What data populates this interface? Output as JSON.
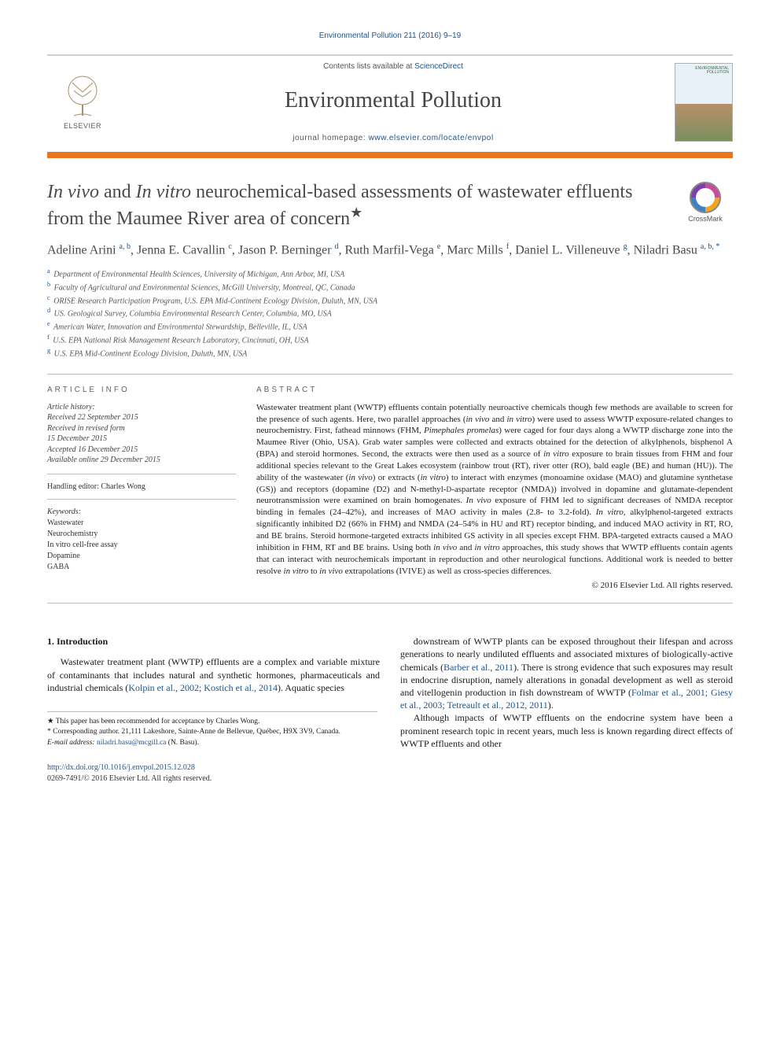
{
  "running_head": "Environmental Pollution 211 (2016) 9–19",
  "masthead": {
    "contents_prefix": "Contents lists available at ",
    "contents_link": "ScienceDirect",
    "journal_name": "Environmental Pollution",
    "homepage_prefix": "journal homepage: ",
    "homepage_url": "www.elsevier.com/locate/envpol",
    "publisher": "ELSEVIER",
    "cover_title": "ENVIRONMENTAL POLLUTION"
  },
  "colors": {
    "link": "#1a5490",
    "accent_bar": "#e9751f",
    "rule": "#bfbfbf",
    "text": "#1a1a1a",
    "muted": "#555555"
  },
  "article": {
    "title_html": "<em>In vivo</em> and <em>In vitro</em> neurochemical-based assessments of wastewater effluents from the Maumee River area of concern",
    "title_star": "★",
    "crossmark_label": "CrossMark",
    "authors_html": "Adeline Arini <sup>a, b</sup>, Jenna E. Cavallin <sup>c</sup>, Jason P. Berninger <sup>d</sup>, Ruth Marfil-Vega <sup>e</sup>, Marc Mills <sup>f</sup>, Daniel L. Villeneuve <sup>g</sup>, Niladri Basu <sup>a, b, *</sup>",
    "affiliations": [
      {
        "key": "a",
        "text": "Department of Environmental Health Sciences, University of Michigan, Ann Arbor, MI, USA"
      },
      {
        "key": "b",
        "text": "Faculty of Agricultural and Environmental Sciences, McGill University, Montreal, QC, Canada"
      },
      {
        "key": "c",
        "text": "ORISE Research Participation Program, U.S. EPA Mid-Continent Ecology Division, Duluth, MN, USA"
      },
      {
        "key": "d",
        "text": "US. Geological Survey, Columbia Environmental Research Center, Columbia, MO, USA"
      },
      {
        "key": "e",
        "text": "American Water, Innovation and Environmental Stewardship, Belleville, IL, USA"
      },
      {
        "key": "f",
        "text": "U.S. EPA National Risk Management Research Laboratory, Cincinnati, OH, USA"
      },
      {
        "key": "g",
        "text": "U.S. EPA Mid-Continent Ecology Division, Duluth, MN, USA"
      }
    ]
  },
  "article_info": {
    "heading": "ARTICLE INFO",
    "history_label": "Article history:",
    "history": [
      "Received 22 September 2015",
      "Received in revised form",
      "15 December 2015",
      "Accepted 16 December 2015",
      "Available online 29 December 2015"
    ],
    "handling_editor": "Handling editor: Charles Wong",
    "keywords_label": "Keywords:",
    "keywords": [
      "Wastewater",
      "Neurochemistry",
      "In vitro cell-free assay",
      "Dopamine",
      "GABA"
    ]
  },
  "abstract": {
    "heading": "ABSTRACT",
    "text_html": "Wastewater treatment plant (WWTP) effluents contain potentially neuroactive chemicals though few methods are available to screen for the presence of such agents. Here, two parallel approaches (<em>in vivo</em> and <em>in vitro</em>) were used to assess WWTP exposure-related changes to neurochemistry. First, fathead minnows (FHM, <em>Pimephales promelas</em>) were caged for four days along a WWTP discharge zone into the Maumee River (Ohio, USA). Grab water samples were collected and extracts obtained for the detection of alkylphenols, bisphenol A (BPA) and steroid hormones. Second, the extracts were then used as a source of <em>in vitro</em> exposure to brain tissues from FHM and four additional species relevant to the Great Lakes ecosystem (rainbow trout (RT), river otter (RO), bald eagle (BE) and human (HU)). The ability of the wastewater (<em>in vivo</em>) or extracts (<em>in vitro</em>) to interact with enzymes (monoamine oxidase (MAO) and glutamine synthetase (GS)) and receptors (dopamine (D2) and N-methyl-<small>D</small>-aspartate receptor (NMDA)) involved in dopamine and glutamate-dependent neurotransmission were examined on brain homogenates. <em>In vivo</em> exposure of FHM led to significant decreases of NMDA receptor binding in females (24–42%), and increases of MAO activity in males (2.8- to 3.2-fold). <em>In vitro</em>, alkylphenol-targeted extracts significantly inhibited D2 (66% in FHM) and NMDA (24–54% in HU and RT) receptor binding, and induced MAO activity in RT, RO, and BE brains. Steroid hormone-targeted extracts inhibited GS activity in all species except FHM. BPA-targeted extracts caused a MAO inhibition in FHM, RT and BE brains. Using both <em>in vivo</em> and <em>in vitro</em> approaches, this study shows that WWTP effluents contain agents that can interact with neurochemicals important in reproduction and other neurological functions. Additional work is needed to better resolve <em>in vitro</em> to <em>in vivo</em> extrapolations (IVIVE) as well as cross-species differences.",
    "copyright": "© 2016 Elsevier Ltd. All rights reserved."
  },
  "body": {
    "intro_heading": "1. Introduction",
    "col1_p1_html": "Wastewater treatment plant (WWTP) effluents are a complex and variable mixture of contaminants that includes natural and synthetic hormones, pharmaceuticals and industrial chemicals (<span class=\"ref\">Kolpin et al., 2002; Kostich et al., 2014</span>). Aquatic species",
    "col2_p1_html": "downstream of WWTP plants can be exposed throughout their lifespan and across generations to nearly undiluted effluents and associated mixtures of biologically-active chemicals (<span class=\"ref\">Barber et al., 2011</span>). There is strong evidence that such exposures may result in endocrine disruption, namely alterations in gonadal development as well as steroid and vitellogenin production in fish downstream of WWTP (<span class=\"ref\">Folmar et al., 2001; Giesy et al., 2003; Tetreault et al., 2012, 2011</span>).",
    "col2_p2_html": "Although impacts of WWTP effluents on the endocrine system have been a prominent research topic in recent years, much less is known regarding direct effects of WWTP effluents and other"
  },
  "footnotes": {
    "star": "★  This paper has been recommended for acceptance by Charles Wong.",
    "corr": "*  Corresponding author. 21,111 Lakeshore, Sainte-Anne de Bellevue, Québec, H9X 3V9, Canada.",
    "email_label": "E-mail address: ",
    "email": "niladri.basu@mcgill.ca",
    "email_suffix": " (N. Basu)."
  },
  "footer": {
    "doi": "http://dx.doi.org/10.1016/j.envpol.2015.12.028",
    "issn_line": "0269-7491/© 2016 Elsevier Ltd. All rights reserved."
  }
}
